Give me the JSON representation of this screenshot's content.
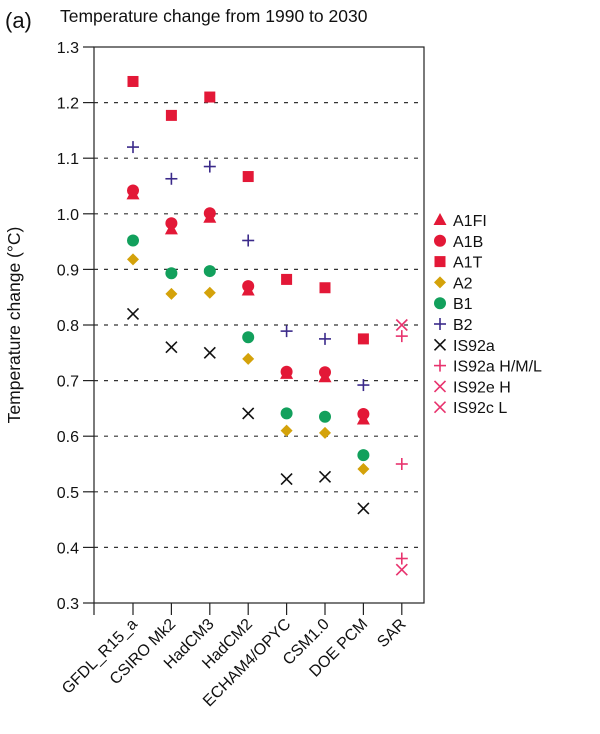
{
  "panel_label": "(a)",
  "chart_data": {
    "type": "scatter",
    "title": "Temperature change from 1990 to 2030",
    "xlabel": "",
    "ylabel": "Temperature change (°C)",
    "ylim": [
      0.3,
      1.3
    ],
    "yticks": [
      0.3,
      0.4,
      0.5,
      0.6,
      0.7,
      0.8,
      0.9,
      1.0,
      1.1,
      1.2,
      1.3
    ],
    "ytick_labels": [
      "0.3",
      "0.4",
      "0.5",
      "0.6",
      "0.7",
      "0.8",
      "0.9",
      "1.0",
      "1.1",
      "1.2",
      "1.3"
    ],
    "grid": "horizontal dotted",
    "legend_position": "right",
    "categories": [
      "GFDL_R15_a",
      "CSIRO Mk2",
      "HadCM3",
      "HadCM2",
      "ECHAM4/OPYC",
      "CSM1.0",
      "DOE PCM",
      "SAR"
    ],
    "series": [
      {
        "name": "A1FI",
        "marker": "triangle",
        "color": "#e31837",
        "values": [
          1.035,
          0.972,
          0.993,
          0.862,
          0.712,
          0.706,
          0.63,
          null
        ]
      },
      {
        "name": "A1B",
        "marker": "circle",
        "color": "#e31837",
        "values": [
          1.042,
          0.983,
          1.001,
          0.87,
          0.716,
          0.715,
          0.64,
          null
        ]
      },
      {
        "name": "A1T",
        "marker": "square",
        "color": "#e31837",
        "values": [
          1.238,
          1.177,
          1.21,
          1.067,
          0.882,
          0.867,
          0.775,
          null
        ]
      },
      {
        "name": "A2",
        "marker": "diamond",
        "color": "#d4a20a",
        "values": [
          0.918,
          0.856,
          0.858,
          0.739,
          0.61,
          0.606,
          0.541,
          null
        ]
      },
      {
        "name": "B1",
        "marker": "circle",
        "color": "#12a05c",
        "values": [
          0.952,
          0.893,
          0.897,
          0.778,
          0.641,
          0.635,
          0.566,
          null
        ]
      },
      {
        "name": "B2",
        "marker": "plus",
        "color": "#3b2a8a",
        "values": [
          1.12,
          1.063,
          1.085,
          0.952,
          0.789,
          0.775,
          0.692,
          null
        ]
      },
      {
        "name": "IS92a",
        "marker": "x",
        "color": "#111111",
        "values": [
          0.82,
          0.76,
          0.75,
          0.641,
          0.523,
          0.527,
          0.47,
          null
        ]
      },
      {
        "name": "IS92a H/M/L",
        "marker": "plus",
        "color": "#e8336e",
        "values": [
          null,
          null,
          null,
          null,
          null,
          null,
          null,
          [
            0.78,
            0.55,
            0.38
          ]
        ]
      },
      {
        "name": "IS92e H",
        "marker": "x",
        "color": "#e8336e",
        "values": [
          null,
          null,
          null,
          null,
          null,
          null,
          null,
          0.8
        ]
      },
      {
        "name": "IS92c L",
        "marker": "x",
        "color": "#e8336e",
        "values": [
          null,
          null,
          null,
          null,
          null,
          null,
          null,
          0.36
        ]
      }
    ]
  }
}
